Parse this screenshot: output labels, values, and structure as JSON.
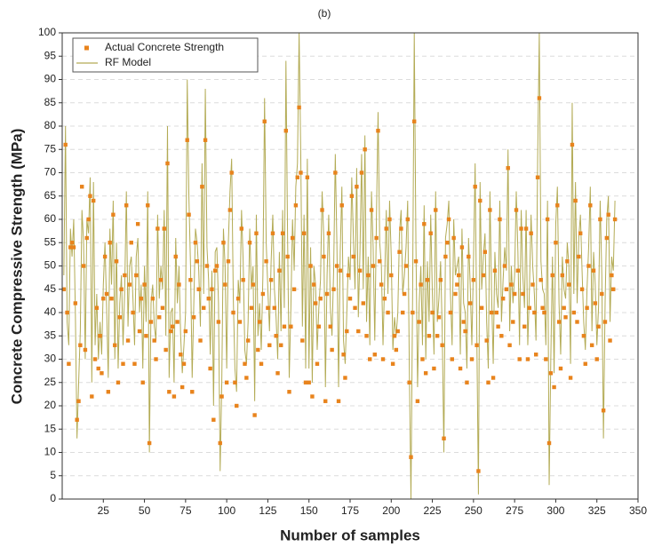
{
  "chart_data": {
    "type": "line",
    "title": "(b)",
    "x_label": "Number of samples",
    "y_label": "Concrete Compressive Strength (MPa)",
    "xlim": [
      0,
      350
    ],
    "xticks": [
      25,
      50,
      75,
      100,
      125,
      150,
      175,
      200,
      225,
      250,
      275,
      300,
      325,
      350
    ],
    "ylim": [
      0,
      100
    ],
    "yticks": [
      0,
      5,
      10,
      15,
      20,
      25,
      30,
      35,
      40,
      45,
      50,
      55,
      60,
      65,
      70,
      75,
      80,
      85,
      90,
      95,
      100
    ],
    "grid": true,
    "legend": "upper left",
    "x": [
      1,
      2,
      3,
      4,
      5,
      6,
      7,
      8,
      9,
      10,
      11,
      12,
      13,
      14,
      15,
      16,
      17,
      18,
      19,
      20,
      21,
      22,
      23,
      24,
      25,
      26,
      27,
      28,
      29,
      30,
      31,
      32,
      33,
      34,
      35,
      36,
      37,
      38,
      39,
      40,
      41,
      42,
      43,
      44,
      45,
      46,
      47,
      48,
      49,
      50,
      51,
      52,
      53,
      54,
      55,
      56,
      57,
      58,
      59,
      60,
      61,
      62,
      63,
      64,
      65,
      66,
      67,
      68,
      69,
      70,
      71,
      72,
      73,
      74,
      75,
      76,
      77,
      78,
      79,
      80,
      81,
      82,
      83,
      84,
      85,
      86,
      87,
      88,
      89,
      90,
      91,
      92,
      93,
      94,
      95,
      96,
      97,
      98,
      99,
      100,
      101,
      102,
      103,
      104,
      105,
      106,
      107,
      108,
      109,
      110,
      111,
      112,
      113,
      114,
      115,
      116,
      117,
      118,
      119,
      120,
      121,
      122,
      123,
      124,
      125,
      126,
      127,
      128,
      129,
      130,
      131,
      132,
      133,
      134,
      135,
      136,
      137,
      138,
      139,
      140,
      141,
      142,
      143,
      144,
      145,
      146,
      147,
      148,
      149,
      150,
      151,
      152,
      153,
      154,
      155,
      156,
      157,
      158,
      159,
      160,
      161,
      162,
      163,
      164,
      165,
      166,
      167,
      168,
      169,
      170,
      171,
      172,
      173,
      174,
      175,
      176,
      177,
      178,
      179,
      180,
      181,
      182,
      183,
      184,
      185,
      186,
      187,
      188,
      189,
      190,
      191,
      192,
      193,
      194,
      195,
      196,
      197,
      198,
      199,
      200,
      201,
      202,
      203,
      204,
      205,
      206,
      207,
      208,
      209,
      210,
      211,
      212,
      213,
      214,
      215,
      216,
      217,
      218,
      219,
      220,
      221,
      222,
      223,
      224,
      225,
      226,
      227,
      228,
      229,
      230,
      231,
      232,
      233,
      234,
      235,
      236,
      237,
      238,
      239,
      240,
      241,
      242,
      243,
      244,
      245,
      246,
      247,
      248,
      249,
      250,
      251,
      252,
      253,
      254,
      255,
      256,
      257,
      258,
      259,
      260,
      261,
      262,
      263,
      264,
      265,
      266,
      267,
      268,
      269,
      270,
      271,
      272,
      273,
      274,
      275,
      276,
      277,
      278,
      279,
      280,
      281,
      282,
      283,
      284,
      285,
      286,
      287,
      288,
      289,
      290,
      291,
      292,
      293,
      294,
      295,
      296,
      297,
      298,
      299,
      300,
      301,
      302,
      303,
      304,
      305,
      306,
      307,
      308,
      309,
      310,
      311,
      312,
      313,
      314,
      315,
      316,
      317,
      318,
      319,
      320,
      321,
      322,
      323,
      324,
      325,
      326,
      327,
      328,
      329,
      330,
      331,
      332,
      333,
      334,
      335,
      336
    ],
    "series": [
      {
        "name": "Actual Concrete Strength",
        "color": "#e8831c",
        "mode": "markers",
        "values": [
          45,
          76,
          40,
          29,
          54,
          55,
          54,
          42,
          17,
          21,
          33,
          67,
          50,
          32,
          56,
          60,
          65,
          22,
          64,
          30,
          41,
          28,
          35,
          27,
          43,
          52,
          44,
          23,
          55,
          43,
          61,
          33,
          51,
          25,
          39,
          45,
          29,
          48,
          63,
          34,
          46,
          55,
          40,
          29,
          48,
          59,
          36,
          43,
          25,
          46,
          35,
          63,
          12,
          38,
          43,
          34,
          30,
          58,
          39,
          47,
          41,
          58,
          32,
          72,
          23,
          36,
          37,
          22,
          52,
          38,
          46,
          31,
          24,
          29,
          36,
          77,
          61,
          47,
          23,
          39,
          55,
          51,
          45,
          34,
          67,
          41,
          77,
          50,
          43,
          28,
          45,
          17,
          49,
          50,
          38,
          12,
          22,
          55,
          46,
          25,
          51,
          62,
          70,
          40,
          25,
          20,
          43,
          38,
          58,
          47,
          29,
          26,
          34,
          55,
          41,
          46,
          18,
          57,
          32,
          38,
          29,
          44,
          81,
          51,
          41,
          33,
          47,
          57,
          41,
          35,
          27,
          49,
          33,
          57,
          37,
          79,
          52,
          23,
          37,
          56,
          45,
          63,
          69,
          84,
          70,
          34,
          57,
          25,
          69,
          25,
          50,
          22,
          46,
          42,
          29,
          37,
          43,
          62,
          52,
          21,
          44,
          57,
          37,
          32,
          45,
          70,
          50,
          21,
          49,
          63,
          31,
          26,
          36,
          48,
          43,
          65,
          52,
          41,
          67,
          36,
          49,
          70,
          42,
          75,
          35,
          48,
          30,
          62,
          50,
          31,
          56,
          79,
          51,
          46,
          30,
          43,
          58,
          40,
          60,
          48,
          29,
          35,
          32,
          36,
          53,
          58,
          40,
          44,
          50,
          60,
          25,
          9,
          40,
          81,
          51,
          21,
          38,
          46,
          30,
          59,
          27,
          47,
          35,
          57,
          40,
          28,
          62,
          35,
          39,
          47,
          33,
          13,
          52,
          55,
          60,
          40,
          30,
          56,
          44,
          46,
          48,
          28,
          54,
          38,
          36,
          25,
          52,
          42,
          30,
          47,
          67,
          33,
          6,
          64,
          41,
          48,
          53,
          34,
          25,
          62,
          40,
          26,
          49,
          40,
          37,
          60,
          35,
          43,
          50,
          45,
          71,
          33,
          46,
          38,
          44,
          62,
          49,
          30,
          58,
          44,
          37,
          58,
          30,
          41,
          57,
          46,
          40,
          31,
          69,
          86,
          47,
          41,
          40,
          30,
          60,
          12,
          27,
          48,
          24,
          55,
          63,
          38,
          28,
          48,
          41,
          39,
          51,
          46,
          26,
          76,
          40,
          64,
          38,
          52,
          57,
          45,
          35,
          29,
          41,
          50,
          63,
          33,
          49,
          42,
          30,
          37,
          60,
          44,
          19,
          38,
          56,
          61,
          34,
          48,
          45,
          60
        ]
      },
      {
        "name": "RF Model",
        "color": "#b3ab55",
        "mode": "lines",
        "values": [
          48,
          80,
          38,
          33,
          58,
          52,
          60,
          40,
          13,
          25,
          36,
          62,
          55,
          30,
          60,
          57,
          69,
          25,
          68,
          33,
          44,
          30,
          38,
          31,
          46,
          55,
          41,
          26,
          58,
          46,
          64,
          30,
          55,
          28,
          42,
          48,
          33,
          45,
          66,
          37,
          50,
          52,
          43,
          33,
          52,
          56,
          40,
          46,
          28,
          50,
          38,
          66,
          10,
          42,
          46,
          37,
          34,
          61,
          43,
          50,
          45,
          62,
          35,
          80,
          26,
          40,
          41,
          25,
          56,
          42,
          50,
          35,
          27,
          33,
          40,
          90,
          65,
          50,
          26,
          42,
          58,
          55,
          49,
          37,
          72,
          44,
          88,
          54,
          47,
          31,
          49,
          20,
          53,
          54,
          42,
          6,
          25,
          58,
          50,
          28,
          55,
          66,
          73,
          43,
          28,
          23,
          47,
          42,
          62,
          51,
          32,
          29,
          38,
          58,
          45,
          50,
          21,
          61,
          35,
          42,
          32,
          48,
          86,
          55,
          45,
          36,
          51,
          61,
          45,
          39,
          30,
          53,
          36,
          62,
          41,
          94,
          56,
          26,
          41,
          60,
          49,
          67,
          72,
          100,
          74,
          37,
          61,
          28,
          73,
          28,
          54,
          25,
          50,
          46,
          32,
          41,
          47,
          66,
          56,
          24,
          48,
          61,
          41,
          35,
          49,
          74,
          54,
          24,
          53,
          67,
          34,
          29,
          40,
          52,
          47,
          69,
          56,
          45,
          71,
          39,
          53,
          74,
          45,
          78,
          38,
          52,
          33,
          66,
          54,
          34,
          60,
          83,
          55,
          50,
          33,
          47,
          62,
          44,
          64,
          52,
          32,
          39,
          35,
          40,
          57,
          62,
          44,
          48,
          54,
          64,
          28,
          0,
          44,
          100,
          55,
          24,
          42,
          50,
          33,
          63,
          30,
          51,
          38,
          61,
          44,
          31,
          66,
          38,
          43,
          51,
          36,
          10,
          56,
          59,
          64,
          44,
          33,
          60,
          48,
          50,
          52,
          31,
          58,
          42,
          40,
          28,
          56,
          46,
          33,
          51,
          72,
          36,
          1,
          68,
          45,
          52,
          57,
          38,
          28,
          66,
          44,
          29,
          53,
          44,
          41,
          64,
          38,
          47,
          54,
          49,
          75,
          36,
          50,
          42,
          48,
          66,
          53,
          33,
          62,
          48,
          41,
          62,
          33,
          45,
          61,
          50,
          44,
          34,
          73,
          100,
          51,
          45,
          44,
          33,
          64,
          3,
          30,
          52,
          27,
          59,
          67,
          42,
          31,
          52,
          45,
          43,
          55,
          50,
          29,
          85,
          44,
          68,
          42,
          56,
          61,
          49,
          38,
          32,
          45,
          54,
          67,
          36,
          53,
          46,
          33,
          41,
          64,
          48,
          13,
          42,
          60,
          65,
          38,
          52,
          49,
          64
        ]
      }
    ]
  }
}
